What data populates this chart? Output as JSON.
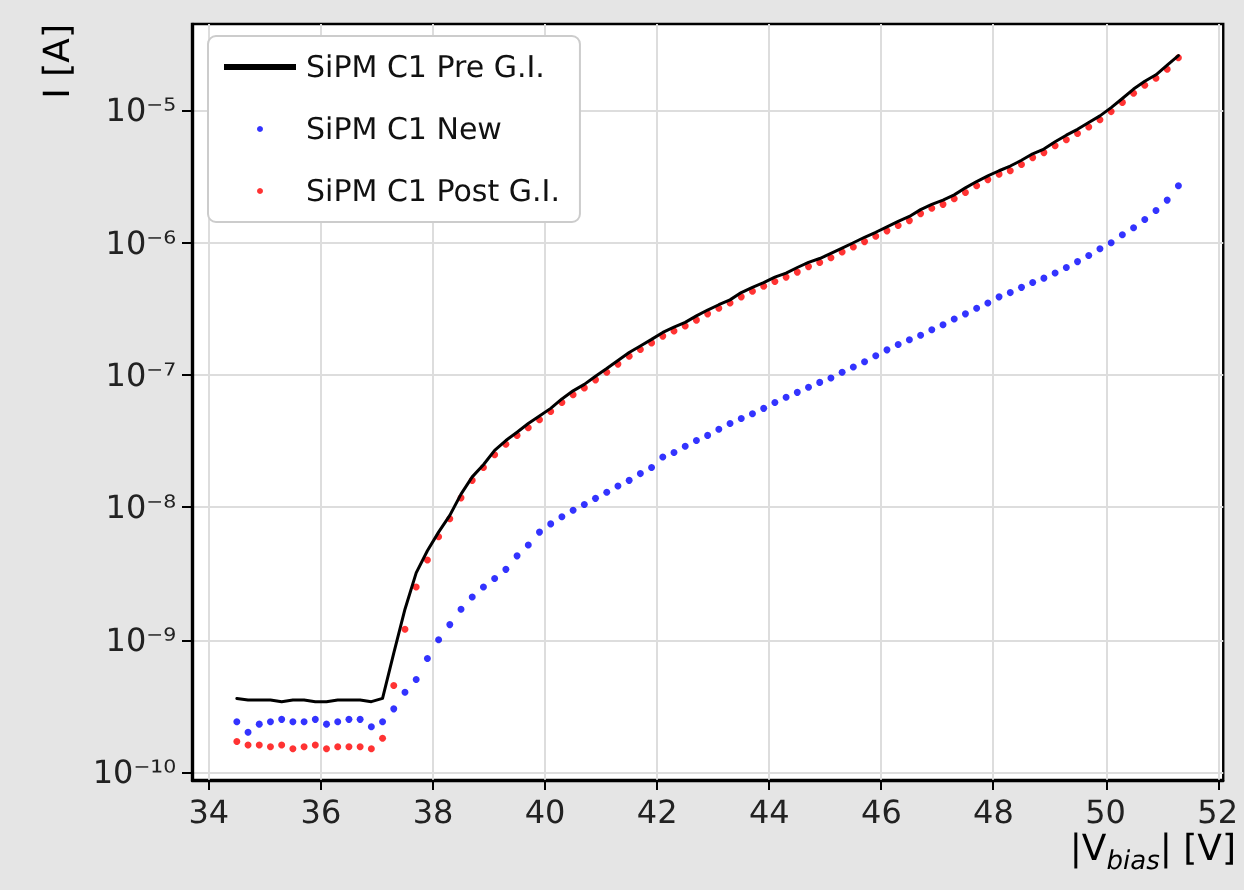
{
  "chart_data": {
    "type": "line",
    "xlabel": "|V$_{bias}$| [V]",
    "ylabel": "I [A]",
    "x": [
      34.5,
      34.7,
      34.9,
      35.1,
      35.3,
      35.5,
      35.7,
      35.9,
      36.1,
      36.3,
      36.5,
      36.7,
      36.9,
      37.1,
      37.3,
      37.5,
      37.7,
      37.9,
      38.1,
      38.3,
      38.5,
      38.7,
      38.9,
      39.1,
      39.3,
      39.5,
      39.7,
      39.9,
      40.1,
      40.3,
      40.5,
      40.7,
      40.9,
      41.1,
      41.3,
      41.5,
      41.7,
      41.9,
      42.1,
      42.3,
      42.5,
      42.7,
      42.9,
      43.1,
      43.3,
      43.5,
      43.7,
      43.9,
      44.1,
      44.3,
      44.5,
      44.7,
      44.9,
      45.1,
      45.3,
      45.5,
      45.7,
      45.9,
      46.1,
      46.3,
      46.5,
      46.7,
      46.9,
      47.1,
      47.3,
      47.5,
      47.7,
      47.9,
      48.1,
      48.3,
      48.5,
      48.7,
      48.9,
      49.1,
      49.3,
      49.5,
      49.7,
      49.9,
      50.1,
      50.3,
      50.5,
      50.7,
      50.9,
      51.1,
      51.3
    ],
    "series": [
      {
        "name": "SiPM C1 Pre G.I.",
        "type": "line",
        "color": "#000000",
        "marker": "none",
        "line_style": "solid",
        "values": [
          3.6e-10,
          3.5e-10,
          3.5e-10,
          3.5e-10,
          3.4e-10,
          3.5e-10,
          3.5e-10,
          3.4e-10,
          3.4e-10,
          3.5e-10,
          3.5e-10,
          3.5e-10,
          3.4e-10,
          3.6e-10,
          7.9e-10,
          1.7e-09,
          3.2e-09,
          4.7e-09,
          6.5e-09,
          8.7e-09,
          1.26e-08,
          1.7e-08,
          2.1e-08,
          2.7e-08,
          3.2e-08,
          3.7e-08,
          4.3e-08,
          4.9e-08,
          5.6e-08,
          6.6e-08,
          7.6e-08,
          8.5e-08,
          9.8e-08,
          1.12e-07,
          1.29e-07,
          1.48e-07,
          1.66e-07,
          1.86e-07,
          2.1e-07,
          2.3e-07,
          2.5e-07,
          2.8e-07,
          3.1e-07,
          3.4e-07,
          3.7e-07,
          4.2e-07,
          4.6e-07,
          5e-07,
          5.5e-07,
          5.9e-07,
          6.5e-07,
          7.1e-07,
          7.6e-07,
          8.3e-07,
          9.1e-07,
          1e-06,
          1.1e-06,
          1.2e-06,
          1.32e-06,
          1.45e-06,
          1.58e-06,
          1.78e-06,
          1.95e-06,
          2.1e-06,
          2.3e-06,
          2.6e-06,
          2.9e-06,
          3.2e-06,
          3.5e-06,
          3.8e-06,
          4.2e-06,
          4.7e-06,
          5.1e-06,
          5.8e-06,
          6.5e-06,
          7.2e-06,
          8.1e-06,
          9.1e-06,
          1.05e-05,
          1.23e-05,
          1.45e-05,
          1.66e-05,
          1.86e-05,
          2.2e-05,
          2.6e-05
        ]
      },
      {
        "name": "SiPM C1 New",
        "type": "scatter",
        "color": "#0000ff",
        "marker": "circle",
        "values": [
          2.4e-10,
          2e-10,
          2.3e-10,
          2.4e-10,
          2.5e-10,
          2.4e-10,
          2.4e-10,
          2.5e-10,
          2.3e-10,
          2.4e-10,
          2.5e-10,
          2.5e-10,
          2.2e-10,
          2.4e-10,
          3e-10,
          4e-10,
          5e-10,
          7.2e-10,
          1e-09,
          1.3e-09,
          1.7e-09,
          2.1e-09,
          2.5e-09,
          2.9e-09,
          3.4e-09,
          4.3e-09,
          5.2e-09,
          6.5e-09,
          7.5e-09,
          8.5e-09,
          9.5e-09,
          1.05e-08,
          1.17e-08,
          1.3e-08,
          1.45e-08,
          1.6e-08,
          1.8e-08,
          2e-08,
          2.4e-08,
          2.6e-08,
          2.9e-08,
          3.2e-08,
          3.5e-08,
          3.9e-08,
          4.3e-08,
          4.7e-08,
          5.1e-08,
          5.6e-08,
          6.2e-08,
          6.8e-08,
          7.4e-08,
          8.1e-08,
          8.8e-08,
          9.5e-08,
          1.05e-07,
          1.15e-07,
          1.26e-07,
          1.4e-07,
          1.55e-07,
          1.7e-07,
          1.85e-07,
          2e-07,
          2.2e-07,
          2.4e-07,
          2.65e-07,
          2.9e-07,
          3.2e-07,
          3.5e-07,
          3.9e-07,
          4.2e-07,
          4.6e-07,
          5e-07,
          5.4e-07,
          5.9e-07,
          6.5e-07,
          7.2e-07,
          8e-07,
          9e-07,
          1e-06,
          1.15e-06,
          1.3e-06,
          1.5e-06,
          1.75e-06,
          2.1e-06,
          2.7e-06
        ]
      },
      {
        "name": "SiPM C1 Post G.I.",
        "type": "scatter",
        "color": "#ff0000",
        "marker": "circle",
        "values": [
          1.7e-10,
          1.6e-10,
          1.6e-10,
          1.55e-10,
          1.6e-10,
          1.5e-10,
          1.55e-10,
          1.6e-10,
          1.5e-10,
          1.55e-10,
          1.55e-10,
          1.55e-10,
          1.5e-10,
          1.8e-10,
          4.5e-10,
          1.2e-09,
          2.5e-09,
          4e-09,
          6e-09,
          8.2e-09,
          1.18e-08,
          1.6e-08,
          2e-08,
          2.5e-08,
          3e-08,
          3.5e-08,
          4e-08,
          4.6e-08,
          5.3e-08,
          6.2e-08,
          7.1e-08,
          8e-08,
          9.2e-08,
          1.05e-07,
          1.21e-07,
          1.39e-07,
          1.56e-07,
          1.75e-07,
          1.97e-07,
          2.15e-07,
          2.35e-07,
          2.6e-07,
          2.9e-07,
          3.2e-07,
          3.5e-07,
          3.9e-07,
          4.3e-07,
          4.7e-07,
          5.1e-07,
          5.5e-07,
          6e-07,
          6.6e-07,
          7.1e-07,
          7.7e-07,
          8.5e-07,
          9.3e-07,
          1.02e-06,
          1.12e-06,
          1.23e-06,
          1.35e-06,
          1.47e-06,
          1.66e-06,
          1.82e-06,
          1.95e-06,
          2.15e-06,
          2.4e-06,
          2.7e-06,
          3e-06,
          3.3e-06,
          3.5e-06,
          3.9e-06,
          4.4e-06,
          4.8e-06,
          5.4e-06,
          6e-06,
          6.7e-06,
          7.5e-06,
          8.5e-06,
          9.8e-06,
          1.15e-05,
          1.35e-05,
          1.55e-05,
          1.75e-05,
          2.05e-05,
          2.5e-05
        ]
      }
    ],
    "xlim": [
      33.7,
      52.1
    ],
    "xticks": [
      34,
      36,
      38,
      40,
      42,
      44,
      46,
      48,
      50,
      52
    ],
    "ylim": [
      8.7e-11,
      4.5e-05
    ],
    "yticks": [
      {
        "value": 1e-10,
        "label": "10⁻¹⁰"
      },
      {
        "value": 1e-09,
        "label": "10⁻⁹"
      },
      {
        "value": 1e-08,
        "label": "10⁻⁸"
      },
      {
        "value": 1e-07,
        "label": "10⁻⁷"
      },
      {
        "value": 1e-06,
        "label": "10⁻⁶"
      },
      {
        "value": 1e-05,
        "label": "10⁻⁵"
      }
    ],
    "log": "y",
    "grid": true,
    "legend": "top left"
  }
}
